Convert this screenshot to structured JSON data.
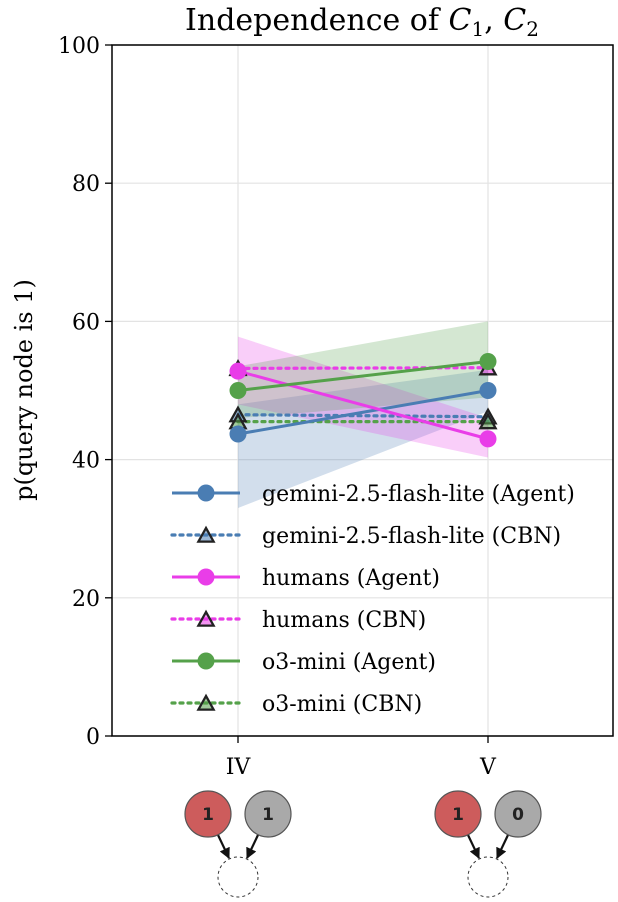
{
  "chart_data": {
    "type": "line",
    "title": "Independence of C1, C2",
    "title_parts": {
      "prefix": "Independence of ",
      "var1": "C",
      "sub1": "1",
      "comma": ", ",
      "var2": "C",
      "sub2": "2"
    },
    "ylabel": "p(query node is 1)",
    "xlabel": "",
    "categories": [
      "IV",
      "V"
    ],
    "ylim": [
      0,
      100
    ],
    "yticks": [
      0,
      20,
      40,
      60,
      80,
      100
    ],
    "grid": true,
    "legend_position": "lower-right",
    "series": [
      {
        "name": "gemini-2.5-flash-lite (Agent)",
        "values": [
          43.7,
          50.0
        ],
        "ci_low": [
          33.0,
          47.0
        ],
        "ci_high": [
          48.0,
          53.0
        ],
        "color": "#4a7db3",
        "style": "solid",
        "marker": "circle"
      },
      {
        "name": "gemini-2.5-flash-lite (CBN)",
        "values": [
          46.5,
          46.2
        ],
        "color": "#4a7db3",
        "style": "dotted",
        "marker": "triangle"
      },
      {
        "name": "humans (Agent)",
        "values": [
          52.8,
          43.0
        ],
        "ci_low": [
          48.0,
          40.3
        ],
        "ci_high": [
          57.8,
          46.0
        ],
        "color": "#e93de8",
        "style": "solid",
        "marker": "circle"
      },
      {
        "name": "humans (CBN)",
        "values": [
          53.2,
          53.3
        ],
        "color": "#e93de8",
        "style": "dotted",
        "marker": "triangle"
      },
      {
        "name": "o3-mini (Agent)",
        "values": [
          50.0,
          54.2
        ],
        "ci_low": [
          46.0,
          49.0
        ],
        "ci_high": [
          53.5,
          60.0
        ],
        "color": "#55a14a",
        "style": "solid",
        "marker": "circle"
      },
      {
        "name": "o3-mini (CBN)",
        "values": [
          45.5,
          45.5
        ],
        "color": "#55a14a",
        "style": "dotted",
        "marker": "triangle"
      }
    ],
    "node_diagrams": [
      {
        "category": "IV",
        "nodes": [
          "1",
          "1"
        ],
        "node_colors": [
          "#cd5c5c",
          "#a9a9a9"
        ]
      },
      {
        "category": "V",
        "nodes": [
          "1",
          "0"
        ],
        "node_colors": [
          "#cd5c5c",
          "#a9a9a9"
        ]
      }
    ]
  }
}
